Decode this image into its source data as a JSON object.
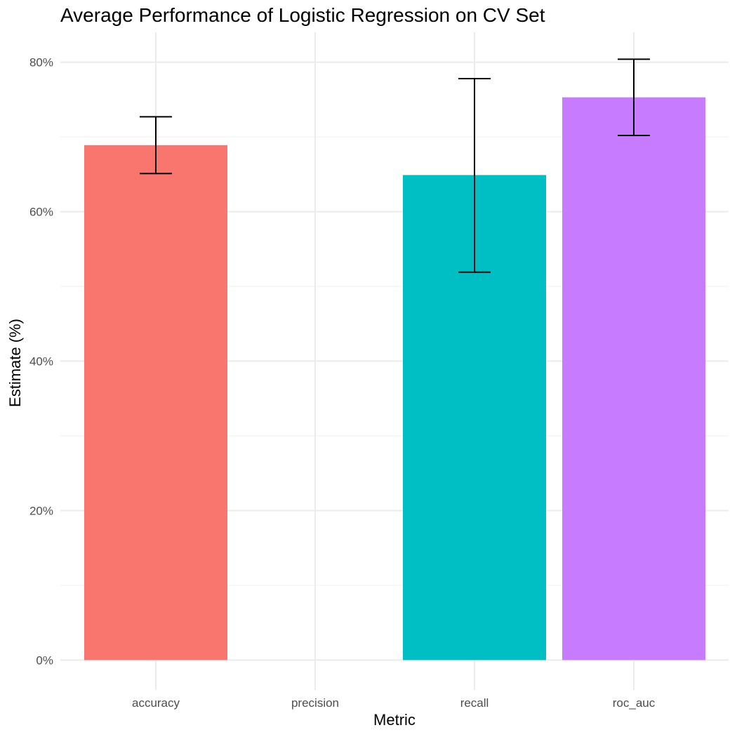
{
  "chart_data": {
    "type": "bar",
    "title": "Average Performance of Logistic Regression on CV Set",
    "xlabel": "Metric",
    "ylabel": "Estimate (%)",
    "categories": [
      "accuracy",
      "precision",
      "recall",
      "roc_auc"
    ],
    "values": [
      0.689,
      null,
      0.649,
      0.753
    ],
    "error_low": [
      0.651,
      null,
      0.519,
      0.702
    ],
    "error_high": [
      0.727,
      null,
      0.778,
      0.804
    ],
    "colors": [
      "#F8766D",
      "#7CAE00",
      "#00BFC4",
      "#C77CFF"
    ],
    "ylim": [
      -0.04,
      0.84
    ],
    "y_ticks": [
      0,
      0.2,
      0.4,
      0.6,
      0.8
    ],
    "y_tick_labels": [
      "0%",
      "20%",
      "40%",
      "60%",
      "80%"
    ],
    "y_minor_ticks": [
      0.1,
      0.3,
      0.5,
      0.7
    ],
    "grid": true,
    "legend": "none"
  }
}
